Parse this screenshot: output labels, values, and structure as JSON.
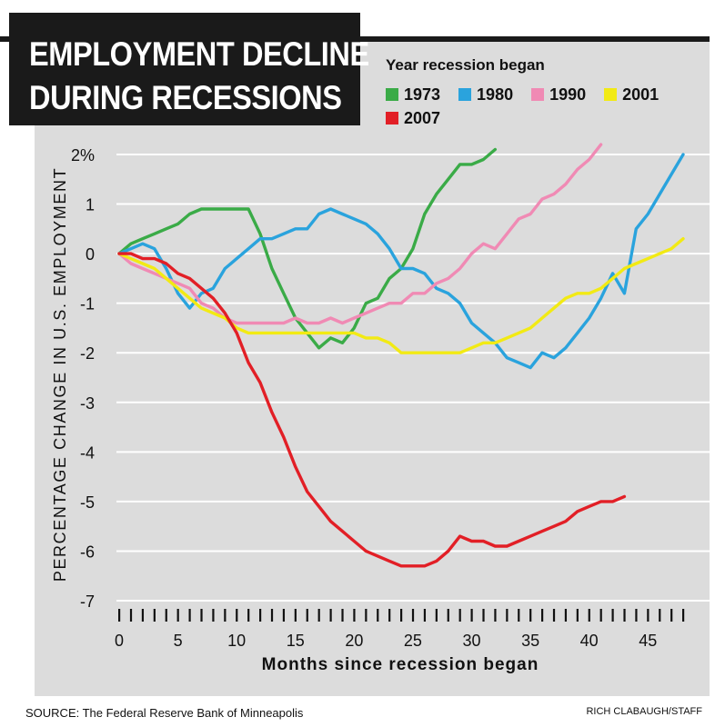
{
  "title_lines": [
    "EMPLOYMENT DECLINE",
    "DURING RECESSIONS"
  ],
  "legend_title": "Year recession began",
  "source": "SOURCE: The Federal Reserve Bank of Minneapolis",
  "credit": "RICH CLABAUGH/STAFF",
  "chart_data": {
    "type": "line",
    "title": "EMPLOYMENT DECLINE DURING RECESSIONS",
    "xlabel": "Months since recession began",
    "ylabel": "PERCENTAGE CHANGE IN U.S. EMPLOYMENT",
    "xlim": [
      0,
      48
    ],
    "ylim": [
      -7,
      2
    ],
    "x_ticks": [
      0,
      5,
      10,
      15,
      20,
      25,
      30,
      35,
      40,
      45
    ],
    "y_ticks": [
      -7,
      -6,
      -5,
      -4,
      -3,
      -2,
      -1,
      0,
      1,
      2
    ],
    "y_tick_labels": [
      "-7",
      "-6",
      "-5",
      "-4",
      "-3",
      "-2",
      "-1",
      "0",
      "1",
      "2%"
    ],
    "grid": "horizontal",
    "legend_position": "top-right",
    "series": [
      {
        "name": "1973",
        "color": "#3aab47",
        "x": [
          0,
          1,
          2,
          3,
          4,
          5,
          6,
          7,
          8,
          9,
          10,
          11,
          12,
          13,
          14,
          15,
          16,
          17,
          18,
          19,
          20,
          21,
          22,
          23,
          24,
          25,
          26,
          27,
          28,
          29,
          30,
          31,
          32
        ],
        "values": [
          0,
          0.2,
          0.3,
          0.4,
          0.5,
          0.6,
          0.8,
          0.9,
          0.9,
          0.9,
          0.9,
          0.9,
          0.4,
          -0.3,
          -0.8,
          -1.3,
          -1.6,
          -1.9,
          -1.7,
          -1.8,
          -1.5,
          -1.0,
          -0.9,
          -0.5,
          -0.3,
          0.1,
          0.8,
          1.2,
          1.5,
          1.8,
          1.8,
          1.9,
          2.1
        ]
      },
      {
        "name": "1980",
        "color": "#2aa3dd",
        "x": [
          0,
          1,
          2,
          3,
          4,
          5,
          6,
          7,
          8,
          9,
          10,
          11,
          12,
          13,
          14,
          15,
          16,
          17,
          18,
          19,
          20,
          21,
          22,
          23,
          24,
          25,
          26,
          27,
          28,
          29,
          30,
          31,
          32,
          33,
          34,
          35,
          36,
          37,
          38,
          39,
          40,
          41,
          42,
          43,
          44,
          45,
          46,
          47,
          48
        ],
        "values": [
          0,
          0.1,
          0.2,
          0.1,
          -0.3,
          -0.8,
          -1.1,
          -0.8,
          -0.7,
          -0.3,
          -0.1,
          0.1,
          0.3,
          0.3,
          0.4,
          0.5,
          0.5,
          0.8,
          0.9,
          0.8,
          0.7,
          0.6,
          0.4,
          0.1,
          -0.3,
          -0.3,
          -0.4,
          -0.7,
          -0.8,
          -1.0,
          -1.4,
          -1.6,
          -1.8,
          -2.1,
          -2.2,
          -2.3,
          -2.0,
          -2.1,
          -1.9,
          -1.6,
          -1.3,
          -0.9,
          -0.4,
          -0.8,
          0.5,
          0.8,
          1.2,
          1.6,
          2.0
        ]
      },
      {
        "name": "1990",
        "color": "#f08ab4",
        "x": [
          0,
          1,
          2,
          3,
          4,
          5,
          6,
          7,
          8,
          9,
          10,
          11,
          12,
          13,
          14,
          15,
          16,
          17,
          18,
          19,
          20,
          21,
          22,
          23,
          24,
          25,
          26,
          27,
          28,
          29,
          30,
          31,
          32,
          33,
          34,
          35,
          36,
          37,
          38,
          39,
          40,
          41
        ],
        "values": [
          0,
          -0.2,
          -0.3,
          -0.4,
          -0.5,
          -0.6,
          -0.7,
          -1.0,
          -1.1,
          -1.3,
          -1.4,
          -1.4,
          -1.4,
          -1.4,
          -1.4,
          -1.3,
          -1.4,
          -1.4,
          -1.3,
          -1.4,
          -1.3,
          -1.2,
          -1.1,
          -1.0,
          -1.0,
          -0.8,
          -0.8,
          -0.6,
          -0.5,
          -0.3,
          0.0,
          0.2,
          0.1,
          0.4,
          0.7,
          0.8,
          1.1,
          1.2,
          1.4,
          1.7,
          1.9,
          2.2
        ]
      },
      {
        "name": "2001",
        "color": "#f2ea14",
        "x": [
          0,
          1,
          2,
          3,
          4,
          5,
          6,
          7,
          8,
          9,
          10,
          11,
          12,
          13,
          14,
          15,
          16,
          17,
          18,
          19,
          20,
          21,
          22,
          23,
          24,
          25,
          26,
          27,
          28,
          29,
          30,
          31,
          32,
          33,
          34,
          35,
          36,
          37,
          38,
          39,
          40,
          41,
          42,
          43,
          44,
          45,
          46,
          47,
          48
        ],
        "values": [
          0,
          -0.1,
          -0.2,
          -0.3,
          -0.5,
          -0.7,
          -0.9,
          -1.1,
          -1.2,
          -1.3,
          -1.5,
          -1.6,
          -1.6,
          -1.6,
          -1.6,
          -1.6,
          -1.6,
          -1.6,
          -1.6,
          -1.6,
          -1.6,
          -1.7,
          -1.7,
          -1.8,
          -2.0,
          -2.0,
          -2.0,
          -2.0,
          -2.0,
          -2.0,
          -1.9,
          -1.8,
          -1.8,
          -1.7,
          -1.6,
          -1.5,
          -1.3,
          -1.1,
          -0.9,
          -0.8,
          -0.8,
          -0.7,
          -0.5,
          -0.3,
          -0.2,
          -0.1,
          0.0,
          0.1,
          0.3
        ]
      },
      {
        "name": "2007",
        "color": "#e21f26",
        "x": [
          0,
          1,
          2,
          3,
          4,
          5,
          6,
          7,
          8,
          9,
          10,
          11,
          12,
          13,
          14,
          15,
          16,
          17,
          18,
          19,
          20,
          21,
          22,
          23,
          24,
          25,
          26,
          27,
          28,
          29,
          30,
          31,
          32,
          33,
          34,
          35,
          36,
          37,
          38,
          39,
          40,
          41,
          42,
          43
        ],
        "values": [
          0,
          0.0,
          -0.1,
          -0.1,
          -0.2,
          -0.4,
          -0.5,
          -0.7,
          -0.9,
          -1.2,
          -1.6,
          -2.2,
          -2.6,
          -3.2,
          -3.7,
          -4.3,
          -4.8,
          -5.1,
          -5.4,
          -5.6,
          -5.8,
          -6.0,
          -6.1,
          -6.2,
          -6.3,
          -6.3,
          -6.3,
          -6.2,
          -6.0,
          -5.7,
          -5.8,
          -5.8,
          -5.9,
          -5.9,
          -5.8,
          -5.7,
          -5.6,
          -5.5,
          -5.4,
          -5.2,
          -5.1,
          -5.0,
          -5.0,
          -4.9
        ]
      }
    ]
  }
}
